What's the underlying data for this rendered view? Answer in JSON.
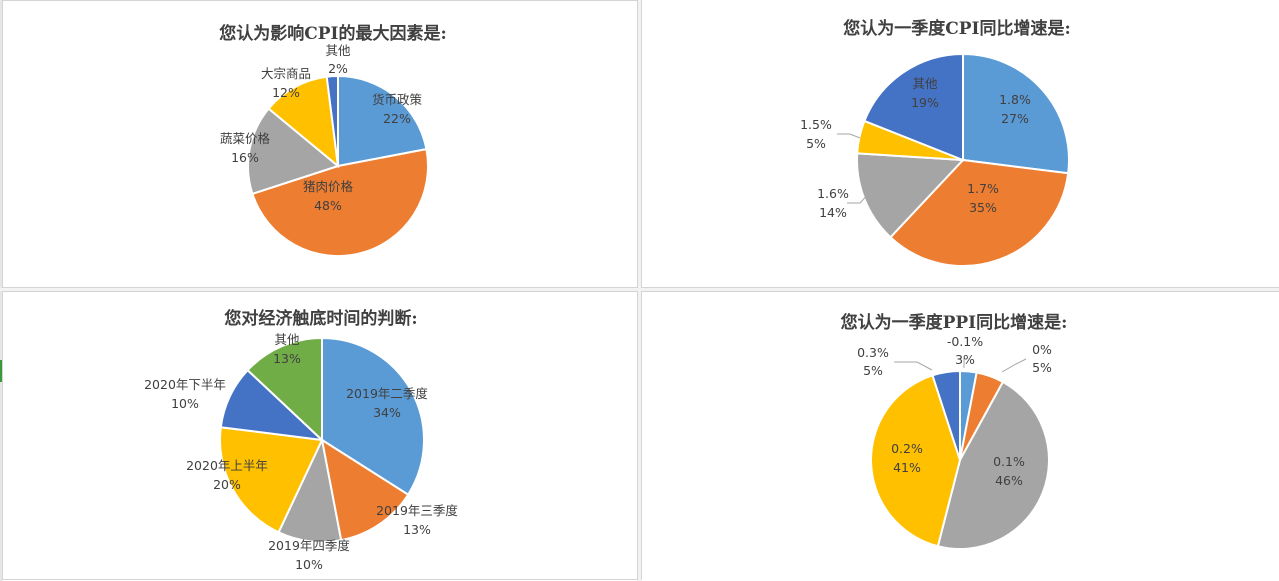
{
  "chart_data": [
    {
      "type": "pie",
      "title": "您认为影响CPI的最大因素是:",
      "categories": [
        "货币政策",
        "猪肉价格",
        "蔬菜价格",
        "大宗商品",
        "其他"
      ],
      "values": [
        22,
        48,
        16,
        12,
        2
      ],
      "value_labels": [
        "22%",
        "48%",
        "16%",
        "12%",
        "2%"
      ],
      "colors": [
        "#5B9BD5",
        "#ED7D31",
        "#A5A5A5",
        "#FFC000",
        "#4472C4"
      ],
      "legend": "none"
    },
    {
      "type": "pie",
      "title": "您认为一季度CPI同比增速是:",
      "categories": [
        "1.8%",
        "1.7%",
        "1.6%",
        "1.5%",
        "其他"
      ],
      "values": [
        27,
        35,
        14,
        5,
        19
      ],
      "value_labels": [
        "27%",
        "35%",
        "14%",
        "5%",
        "19%"
      ],
      "colors": [
        "#5B9BD5",
        "#ED7D31",
        "#A5A5A5",
        "#FFC000",
        "#4472C4"
      ],
      "legend": "none"
    },
    {
      "type": "pie",
      "title": "您对经济触底时间的判断:",
      "categories": [
        "2019年二季度",
        "2019年三季度",
        "2019年四季度",
        "2020年上半年",
        "2020年下半年",
        "其他"
      ],
      "values": [
        34,
        13,
        10,
        20,
        10,
        13
      ],
      "value_labels": [
        "34%",
        "13%",
        "10%",
        "20%",
        "10%",
        "13%"
      ],
      "colors": [
        "#5B9BD5",
        "#ED7D31",
        "#A5A5A5",
        "#FFC000",
        "#4472C4",
        "#70AD47"
      ],
      "legend": "none"
    },
    {
      "type": "pie",
      "title": "您认为一季度PPI同比增速是:",
      "categories": [
        "-0.1%",
        "0%",
        "0.1%",
        "0.2%",
        "0.3%"
      ],
      "values": [
        3,
        5,
        46,
        41,
        5
      ],
      "value_labels": [
        "3%",
        "5%",
        "46%",
        "41%",
        "5%"
      ],
      "colors": [
        "#5B9BD5",
        "#ED7D31",
        "#A5A5A5",
        "#FFC000",
        "#4472C4"
      ],
      "legend": "none"
    }
  ]
}
